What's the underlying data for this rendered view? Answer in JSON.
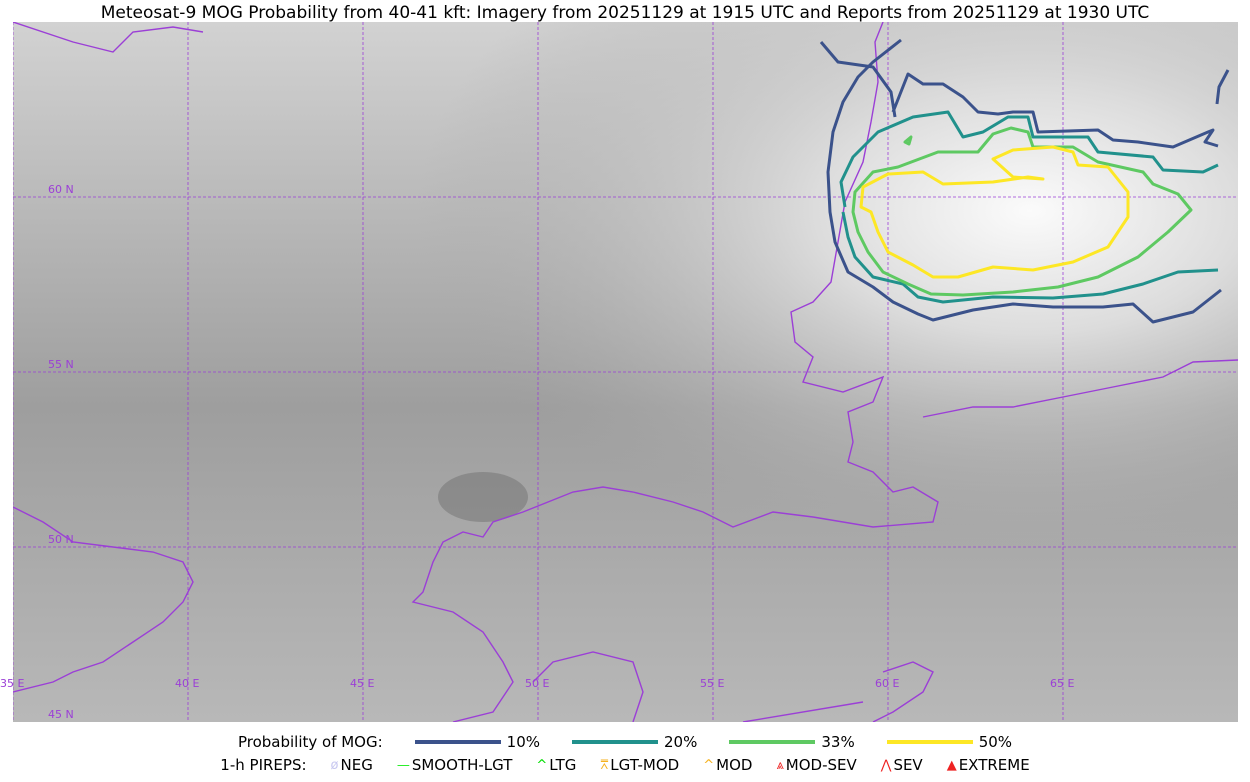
{
  "title": "Meteosat-9 MOG Probability from 40-41 kft: Imagery from 20251129 at 1915 UTC and Reports from 20251129 at 1930 UTC",
  "map": {
    "lon_labels": [
      "35 E",
      "40 E",
      "45 E",
      "50 E",
      "55 E",
      "60 E",
      "65 E"
    ],
    "lat_labels": [
      "60 N",
      "55 N",
      "50 N",
      "45 N"
    ],
    "colors": {
      "coast": "#9b3fd6",
      "grid": "#9b3fd6",
      "p10": "#3b528b",
      "p20": "#21918c",
      "p33": "#5ec962",
      "p50": "#fde725"
    }
  },
  "legend": {
    "prob_label": "Probability of MOG:",
    "prob_items": [
      {
        "label": "10%",
        "color": "#3b528b"
      },
      {
        "label": "20%",
        "color": "#21918c"
      },
      {
        "label": "33%",
        "color": "#5ec962"
      },
      {
        "label": "50%",
        "color": "#fde725"
      }
    ],
    "pirep_label": "1-h PIREPS:",
    "pirep_items": [
      {
        "label": "NEG",
        "color": "#c8c8f0",
        "icon": "neg-icon"
      },
      {
        "label": "SMOOTH-LGT",
        "color": "#22ee22",
        "icon": "line-icon"
      },
      {
        "label": "LTG",
        "color": "#00dd00",
        "icon": "caret-icon"
      },
      {
        "label": "LGT-MOD",
        "color": "#f5b21f",
        "icon": "caret-bar-icon"
      },
      {
        "label": "MOD",
        "color": "#f5b21f",
        "icon": "caret-icon"
      },
      {
        "label": "MOD-SEV",
        "color": "#ee2222",
        "icon": "double-caret-bar-icon"
      },
      {
        "label": "SEV",
        "color": "#ee2222",
        "icon": "double-caret-icon"
      },
      {
        "label": "EXTREME",
        "color": "#ee2222",
        "icon": "filled-triangle-icon"
      }
    ]
  }
}
